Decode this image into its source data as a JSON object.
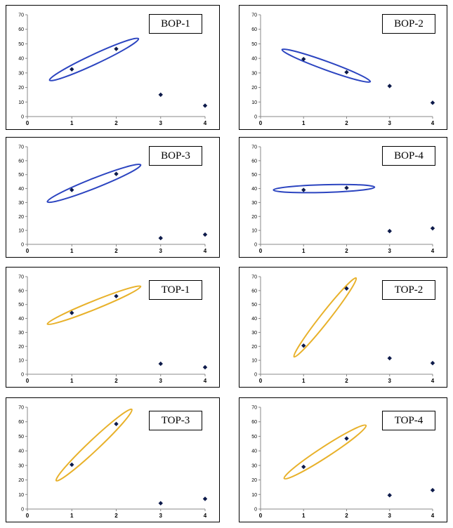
{
  "chart_data": [
    {
      "type": "scatter",
      "title": "BOP-1",
      "x": [
        1,
        2,
        3,
        4
      ],
      "y": [
        32.5,
        46.5,
        15,
        7.5
      ],
      "xlim": [
        0,
        4
      ],
      "ylim": [
        0,
        70
      ],
      "xticks": [
        0,
        1,
        2,
        3,
        4
      ],
      "yticks": [
        0,
        10,
        20,
        30,
        40,
        50,
        60,
        70
      ],
      "grid": false,
      "ellipse_color": "#2B44C0",
      "ellipse": {
        "x1": 0.5,
        "y1": 25,
        "x2": 2.5,
        "y2": 53.5,
        "minor": 7
      }
    },
    {
      "type": "scatter",
      "title": "BOP-2",
      "x": [
        1,
        2,
        3,
        4
      ],
      "y": [
        39.5,
        30.5,
        21,
        9.5
      ],
      "xlim": [
        0,
        4
      ],
      "ylim": [
        0,
        70
      ],
      "xticks": [
        0,
        1,
        2,
        3,
        4
      ],
      "yticks": [
        0,
        10,
        20,
        30,
        40,
        50,
        60,
        70
      ],
      "grid": false,
      "ellipse_color": "#2B44C0",
      "ellipse": {
        "x1": 0.5,
        "y1": 46,
        "x2": 2.55,
        "y2": 24,
        "minor": 6
      }
    },
    {
      "type": "scatter",
      "title": "BOP-3",
      "x": [
        1,
        2,
        3,
        4
      ],
      "y": [
        39,
        50.5,
        4.5,
        7
      ],
      "xlim": [
        0,
        4
      ],
      "ylim": [
        0,
        70
      ],
      "xticks": [
        0,
        1,
        2,
        3,
        4
      ],
      "yticks": [
        0,
        10,
        20,
        30,
        40,
        50,
        60,
        70
      ],
      "grid": false,
      "ellipse_color": "#2B44C0",
      "ellipse": {
        "x1": 0.45,
        "y1": 30.5,
        "x2": 2.55,
        "y2": 57,
        "minor": 7
      }
    },
    {
      "type": "scatter",
      "title": "BOP-4",
      "x": [
        1,
        2,
        3,
        4
      ],
      "y": [
        39,
        40.5,
        9.5,
        11.5
      ],
      "xlim": [
        0,
        4
      ],
      "ylim": [
        0,
        70
      ],
      "xticks": [
        0,
        1,
        2,
        3,
        4
      ],
      "yticks": [
        0,
        10,
        20,
        30,
        40,
        50,
        60,
        70
      ],
      "grid": false,
      "ellipse_color": "#2B44C0",
      "ellipse": {
        "x1": 0.3,
        "y1": 39,
        "x2": 2.65,
        "y2": 41,
        "minor": 5.5
      }
    },
    {
      "type": "scatter",
      "title": "TOP-1",
      "x": [
        1,
        2,
        3,
        4
      ],
      "y": [
        44,
        56,
        7.5,
        5
      ],
      "xlim": [
        0,
        4
      ],
      "ylim": [
        0,
        70
      ],
      "xticks": [
        0,
        1,
        2,
        3,
        4
      ],
      "yticks": [
        0,
        10,
        20,
        30,
        40,
        50,
        60,
        70
      ],
      "grid": false,
      "ellipse_color": "#E8B12A",
      "ellipse": {
        "x1": 0.45,
        "y1": 36,
        "x2": 2.55,
        "y2": 63,
        "minor": 6
      }
    },
    {
      "type": "scatter",
      "title": "TOP-2",
      "x": [
        1,
        2,
        3,
        4
      ],
      "y": [
        20.5,
        61.5,
        11.5,
        8
      ],
      "xlim": [
        0,
        4
      ],
      "ylim": [
        0,
        70
      ],
      "xticks": [
        0,
        1,
        2,
        3,
        4
      ],
      "yticks": [
        0,
        10,
        20,
        30,
        40,
        50,
        60,
        70
      ],
      "grid": false,
      "ellipse_color": "#E8B12A",
      "ellipse": {
        "x1": 0.78,
        "y1": 12.5,
        "x2": 2.22,
        "y2": 69,
        "minor": 6.5
      }
    },
    {
      "type": "scatter",
      "title": "TOP-3",
      "x": [
        1,
        2,
        3,
        4
      ],
      "y": [
        30.5,
        58.5,
        4,
        7
      ],
      "xlim": [
        0,
        4
      ],
      "ylim": [
        0,
        70
      ],
      "xticks": [
        0,
        1,
        2,
        3,
        4
      ],
      "yticks": [
        0,
        10,
        20,
        30,
        40,
        50,
        60,
        70
      ],
      "grid": false,
      "ellipse_color": "#E8B12A",
      "ellipse": {
        "x1": 0.65,
        "y1": 19.5,
        "x2": 2.35,
        "y2": 68.5,
        "minor": 7.5
      }
    },
    {
      "type": "scatter",
      "title": "TOP-4",
      "x": [
        1,
        2,
        3,
        4
      ],
      "y": [
        29,
        48.5,
        9.5,
        13
      ],
      "xlim": [
        0,
        4
      ],
      "ylim": [
        0,
        70
      ],
      "xticks": [
        0,
        1,
        2,
        3,
        4
      ],
      "yticks": [
        0,
        10,
        20,
        30,
        40,
        50,
        60,
        70
      ],
      "grid": false,
      "ellipse_color": "#E8B12A",
      "ellipse": {
        "x1": 0.55,
        "y1": 21,
        "x2": 2.45,
        "y2": 57.5,
        "minor": 7.5
      }
    }
  ]
}
